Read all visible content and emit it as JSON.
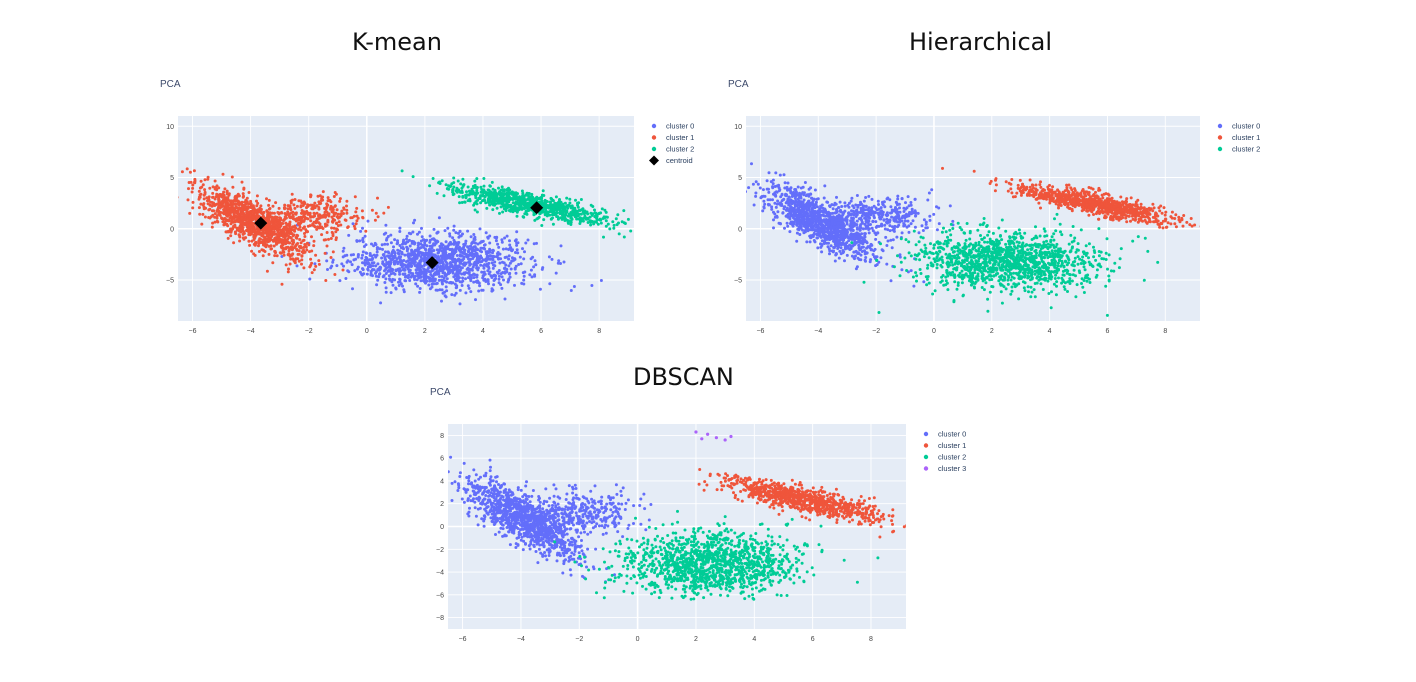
{
  "headings": {
    "kmean": "K-mean",
    "hierarchical": "Hierarchical",
    "dbscan": "DBSCAN"
  },
  "chart_data": [
    {
      "type": "scatter",
      "title": "PCA",
      "xlabel": "",
      "ylabel": "",
      "xlim": [
        -6.5,
        9.2
      ],
      "ylim": [
        -9,
        11
      ],
      "xticks": [
        -6,
        -4,
        -2,
        0,
        2,
        4,
        6,
        8
      ],
      "yticks": [
        -5,
        0,
        5,
        10
      ],
      "grid": true,
      "legend_position": "top-right",
      "series": [
        {
          "name": "cluster 0",
          "color": "#636efa",
          "blobs": [
            {
              "cx": 2.5,
              "cy": -3.2,
              "sx": 1.55,
              "sy": 1.35,
              "n": 1300,
              "rot": 0
            }
          ]
        },
        {
          "name": "cluster 1",
          "color": "#ef553b",
          "blobs": [
            {
              "cx": -3.9,
              "cy": 0.6,
              "sx": 0.55,
              "sy": 1.9,
              "n": 1100,
              "rot": 0.45
            },
            {
              "cx": -2.0,
              "cy": 1.2,
              "sx": 0.95,
              "sy": 1.0,
              "n": 350,
              "rot": 0
            }
          ]
        },
        {
          "name": "cluster 2",
          "color": "#00cc96",
          "blobs": [
            {
              "cx": 5.6,
              "cy": 2.4,
              "sx": 1.6,
              "sy": 0.45,
              "n": 900,
              "rot": -0.55
            }
          ]
        }
      ],
      "centroids": {
        "name": "centroid",
        "color": "#000000",
        "x": [
          -3.65,
          2.25,
          5.85
        ],
        "y": [
          0.55,
          -3.3,
          2.05
        ]
      }
    },
    {
      "type": "scatter",
      "title": "PCA",
      "xlabel": "",
      "ylabel": "",
      "xlim": [
        -6.5,
        9.2
      ],
      "ylim": [
        -9,
        11
      ],
      "xticks": [
        -6,
        -4,
        -2,
        0,
        2,
        4,
        6,
        8
      ],
      "yticks": [
        -5,
        0,
        5,
        10
      ],
      "grid": true,
      "legend_position": "top-right",
      "series": [
        {
          "name": "cluster 0",
          "color": "#636efa",
          "blobs": [
            {
              "cx": -3.9,
              "cy": 0.6,
              "sx": 0.55,
              "sy": 1.9,
              "n": 1100,
              "rot": 0.45
            },
            {
              "cx": -2.0,
              "cy": 1.2,
              "sx": 0.95,
              "sy": 1.0,
              "n": 350,
              "rot": 0
            }
          ]
        },
        {
          "name": "cluster 1",
          "color": "#ef553b",
          "blobs": [
            {
              "cx": 5.6,
              "cy": 2.4,
              "sx": 1.6,
              "sy": 0.45,
              "n": 900,
              "rot": -0.55
            }
          ]
        },
        {
          "name": "cluster 2",
          "color": "#00cc96",
          "blobs": [
            {
              "cx": 2.5,
              "cy": -3.2,
              "sx": 1.55,
              "sy": 1.35,
              "n": 1300,
              "rot": 0
            }
          ]
        }
      ]
    },
    {
      "type": "scatter",
      "title": "PCA",
      "xlabel": "",
      "ylabel": "",
      "xlim": [
        -6.5,
        9.2
      ],
      "ylim": [
        -9,
        9
      ],
      "xticks": [
        -6,
        -4,
        -2,
        0,
        2,
        4,
        6,
        8
      ],
      "yticks": [
        -8,
        -6,
        -4,
        -2,
        0,
        2,
        4,
        6,
        8
      ],
      "grid": true,
      "legend_position": "top-right",
      "series": [
        {
          "name": "cluster 0",
          "color": "#636efa",
          "blobs": [
            {
              "cx": -3.9,
              "cy": 0.6,
              "sx": 0.55,
              "sy": 1.9,
              "n": 1100,
              "rot": 0.45
            },
            {
              "cx": -2.0,
              "cy": 1.2,
              "sx": 0.95,
              "sy": 1.0,
              "n": 350,
              "rot": 0
            }
          ]
        },
        {
          "name": "cluster 1",
          "color": "#ef553b",
          "blobs": [
            {
              "cx": 5.6,
              "cy": 2.4,
              "sx": 1.6,
              "sy": 0.45,
              "n": 900,
              "rot": -0.55
            }
          ]
        },
        {
          "name": "cluster 2",
          "color": "#00cc96",
          "blobs": [
            {
              "cx": 2.5,
              "cy": -3.2,
              "sx": 1.55,
              "sy": 1.35,
              "n": 1300,
              "rot": 0
            }
          ]
        },
        {
          "name": "cluster 3",
          "color": "#ab63fa",
          "points": [
            [
              2.0,
              8.3
            ],
            [
              2.4,
              8.1
            ],
            [
              2.7,
              7.8
            ],
            [
              3.0,
              7.6
            ],
            [
              3.2,
              7.9
            ],
            [
              2.2,
              7.7
            ]
          ]
        }
      ]
    }
  ]
}
